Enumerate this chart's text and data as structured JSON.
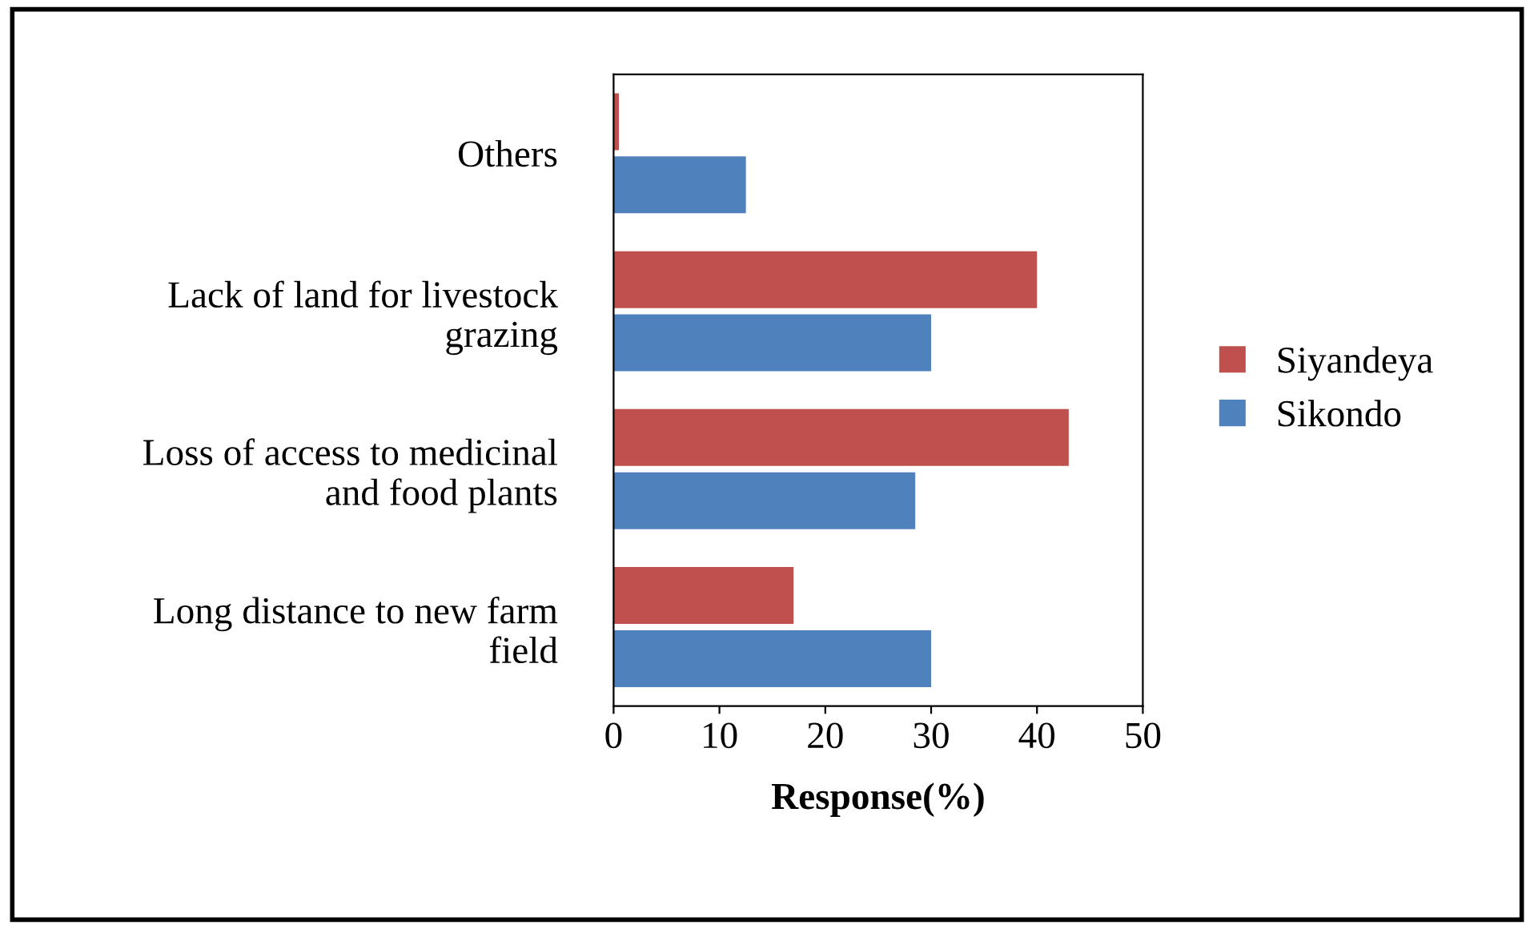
{
  "chart_data": {
    "type": "bar",
    "orientation": "horizontal",
    "xlabel": "Response(%)",
    "categories": [
      "Others",
      "Lack of land for livestock\ngrazing",
      "Loss of access to medicinal\nand food plants",
      "Long distance to new farm\nfield"
    ],
    "series": [
      {
        "name": "Siyandeya",
        "color": "#c0504d",
        "values": [
          0.5,
          40,
          43,
          17
        ]
      },
      {
        "name": "Sikondo",
        "color": "#4f81bd",
        "values": [
          12.5,
          30,
          28.5,
          30
        ]
      }
    ],
    "xlim": [
      0,
      50
    ],
    "xticks": [
      0,
      10,
      20,
      30,
      40,
      50
    ],
    "grid": false,
    "legend": "right"
  }
}
